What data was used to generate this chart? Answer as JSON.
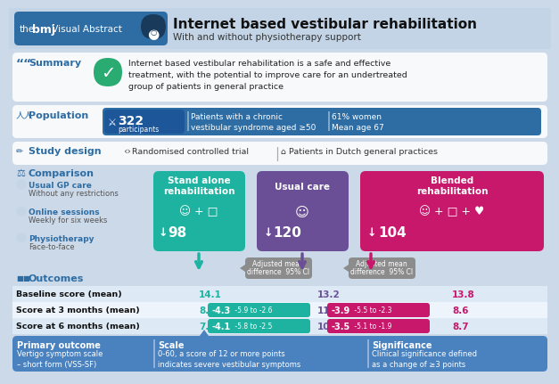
{
  "title": "Internet based vestibular rehabilitation",
  "subtitle": "With and without physiotherapy support",
  "bg_color": "#ccd9e8",
  "header_bg": "#c5d5e6",
  "summary_text": "Internet based vestibular rehabilitation is a safe and effective\ntreatment, with the potential to improve care for an undertreated\ngroup of patients in general practice",
  "population_n": "322",
  "population_label": "participants",
  "population_desc": "Patients with a chronic\nvestibular syndrome aged ≥50",
  "population_stats": "61% women\nMean age 67",
  "study_design_text": "Randomised controlled trial",
  "study_design_text2": "Patients in Dutch general practices",
  "comparison_items_line1": [
    "Usual GP care",
    "Online sessions",
    "Physiotherapy"
  ],
  "comparison_items_line2": [
    "Without any restrictions",
    "Weekly for six weeks",
    "Face-to-face"
  ],
  "group1_title": "Stand alone\nrehabilitation",
  "group1_n": "98",
  "group1_color": "#1db3a0",
  "group2_title": "Usual care",
  "group2_n": "120",
  "group2_color": "#6b4f96",
  "group3_title": "Blended\nrehabilitation",
  "group3_n": "104",
  "group3_color": "#c8186c",
  "amd_box_color": "#8c8c8c",
  "baseline_label": "Baseline score (mean)",
  "month3_label": "Score at 3 months (mean)",
  "month6_label": "Score at 6 months (mean)",
  "baseline_g1": "14.1",
  "baseline_g2": "13.2",
  "baseline_g3": "13.8",
  "month3_g1": "8.1",
  "month3_amd1": "-4.3",
  "month3_ci1": " -5.9 to -2.6",
  "month3_g2": "11.5",
  "month3_amd2": "-3.9",
  "month3_ci2": " -5.5 to -2.3",
  "month3_g3": "8.6",
  "month6_g1": "7.5",
  "month6_amd1": "-4.1",
  "month6_ci1": " -5.8 to -2.5",
  "month6_g2": "10.9",
  "month6_amd2": "-3.5",
  "month6_ci2": " -5.1 to -1.9",
  "month6_g3": "8.7",
  "footer_col1_title": "Primary outcome",
  "footer_col1_text": "Vertigo symptom scale\n– short form (VSS-SF)",
  "footer_col2_title": "Scale",
  "footer_col2_text": "0-60, a score of 12 or more points\nindicates severe vestibular symptoms",
  "footer_col3_title": "Significance",
  "footer_col3_text": "Clinical significance defined\nas a change of ≥3 points",
  "footer_bg": "#4a82c0",
  "teal_color": "#1db3a0",
  "purple_color": "#6b4f96",
  "pink_color": "#c8186c",
  "blue_color": "#2e6da4",
  "white": "#ffffff",
  "row_alt": "#ddeaf6",
  "row_white": "#eef4fb"
}
